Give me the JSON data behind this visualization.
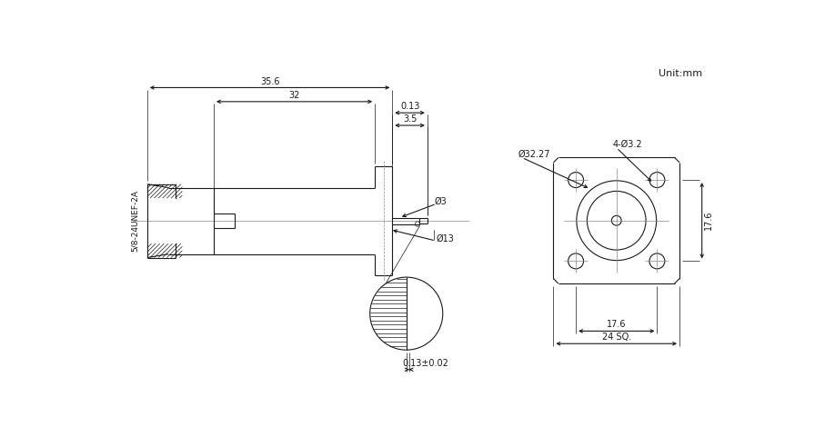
{
  "bg_color": "#ffffff",
  "line_color": "#1a1a1a",
  "lw": 0.8,
  "title": "Unit:mm",
  "annotations": {
    "dim_35_6": "35.6",
    "dim_32": "32",
    "dim_0_13_top": "0.13",
    "dim_3_5": "3.5",
    "dim_32_27": "Ø32.27",
    "dim_4_3_2": "4-Ø3.2",
    "dim_phi3": "Ø3",
    "dim_phi13": "Ø13",
    "dim_17_6_horiz": "17.6",
    "dim_24_sq": "24 SQ.",
    "dim_17_6_vert": "17.6",
    "dim_0_13_02": "0.13±0.02",
    "label_thread": "5/8-24UNEF-2A"
  }
}
